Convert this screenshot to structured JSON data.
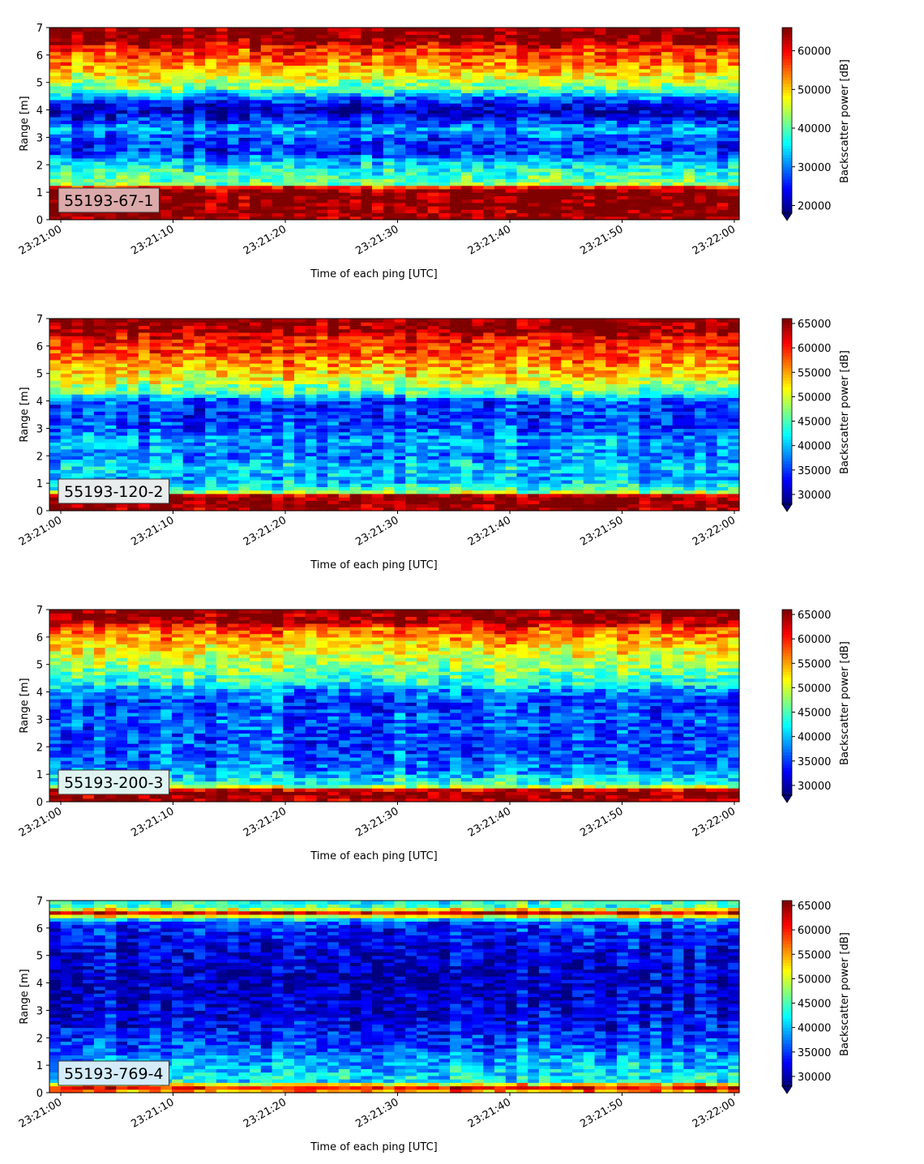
{
  "chart_data": [
    {
      "type": "heatmap",
      "label": "55193-67-1",
      "xlabel": "Time of each ping [UTC]",
      "ylabel": "Range [m]",
      "colorbar_label": "Backscatter power [dB]",
      "xticks": [
        "23:21:00",
        "23:21:10",
        "23:21:20",
        "23:21:30",
        "23:21:40",
        "23:21:50",
        "23:22:00"
      ],
      "yticks": [
        0,
        1,
        2,
        3,
        4,
        5,
        6,
        7
      ],
      "ylim": [
        0,
        7
      ],
      "colorbar_ticks": [
        20000,
        30000,
        40000,
        50000,
        60000
      ],
      "colorbar_range": [
        18000,
        66000
      ],
      "colormap": "jet",
      "label_box_color": "#dcaaaa",
      "profile": [
        [
          0.0,
          0.98
        ],
        [
          0.25,
          0.98
        ],
        [
          0.45,
          1.0
        ],
        [
          1.0,
          1.0
        ],
        [
          1.15,
          0.95
        ],
        [
          1.3,
          0.5
        ],
        [
          1.5,
          0.45
        ],
        [
          1.8,
          0.4
        ],
        [
          2.1,
          0.33
        ],
        [
          2.5,
          0.15
        ],
        [
          2.9,
          0.18
        ],
        [
          3.3,
          0.28
        ],
        [
          3.6,
          0.18
        ],
        [
          3.9,
          0.05
        ],
        [
          4.2,
          0.1
        ],
        [
          4.5,
          0.28
        ],
        [
          4.8,
          0.48
        ],
        [
          5.2,
          0.6
        ],
        [
          5.6,
          0.72
        ],
        [
          6.0,
          0.8
        ],
        [
          6.3,
          0.85
        ],
        [
          6.5,
          0.98
        ],
        [
          7.0,
          1.0
        ]
      ]
    },
    {
      "type": "heatmap",
      "label": "55193-120-2",
      "xlabel": "Time of each ping [UTC]",
      "ylabel": "Range [m]",
      "colorbar_label": "Backscatter power [dB]",
      "xticks": [
        "23:21:00",
        "23:21:10",
        "23:21:20",
        "23:21:30",
        "23:21:40",
        "23:21:50",
        "23:22:00"
      ],
      "yticks": [
        0,
        1,
        2,
        3,
        4,
        5,
        6,
        7
      ],
      "ylim": [
        0,
        7
      ],
      "colorbar_ticks": [
        30000,
        35000,
        40000,
        45000,
        50000,
        55000,
        60000,
        65000
      ],
      "colorbar_range": [
        28000,
        66000
      ],
      "colormap": "jet",
      "label_box_color": "#e8ecec",
      "profile": [
        [
          0.0,
          0.98
        ],
        [
          0.3,
          1.0
        ],
        [
          0.55,
          0.98
        ],
        [
          0.7,
          0.5
        ],
        [
          0.9,
          0.38
        ],
        [
          1.2,
          0.3
        ],
        [
          1.6,
          0.35
        ],
        [
          2.0,
          0.25
        ],
        [
          2.5,
          0.3
        ],
        [
          3.0,
          0.2
        ],
        [
          3.5,
          0.18
        ],
        [
          4.0,
          0.2
        ],
        [
          4.3,
          0.45
        ],
        [
          4.8,
          0.62
        ],
        [
          5.3,
          0.72
        ],
        [
          5.8,
          0.82
        ],
        [
          6.3,
          0.88
        ],
        [
          6.55,
          0.98
        ],
        [
          7.0,
          1.0
        ]
      ]
    },
    {
      "type": "heatmap",
      "label": "55193-200-3",
      "xlabel": "Time of each ping [UTC]",
      "ylabel": "Range [m]",
      "colorbar_label": "Backscatter power [dB]",
      "xticks": [
        "23:21:00",
        "23:21:10",
        "23:21:20",
        "23:21:30",
        "23:21:40",
        "23:21:50",
        "23:22:00"
      ],
      "yticks": [
        0,
        1,
        2,
        3,
        4,
        5,
        6,
        7
      ],
      "ylim": [
        0,
        7
      ],
      "colorbar_ticks": [
        30000,
        35000,
        40000,
        45000,
        50000,
        55000,
        60000,
        65000
      ],
      "colorbar_range": [
        28000,
        66000
      ],
      "colormap": "jet",
      "label_box_color": "#dff3f0",
      "profile": [
        [
          0.0,
          0.95
        ],
        [
          0.3,
          1.0
        ],
        [
          0.45,
          0.9
        ],
        [
          0.6,
          0.45
        ],
        [
          0.9,
          0.35
        ],
        [
          1.2,
          0.25
        ],
        [
          1.6,
          0.22
        ],
        [
          2.0,
          0.2
        ],
        [
          2.5,
          0.2
        ],
        [
          3.0,
          0.23
        ],
        [
          3.5,
          0.18
        ],
        [
          4.0,
          0.25
        ],
        [
          4.3,
          0.4
        ],
        [
          4.8,
          0.5
        ],
        [
          5.3,
          0.6
        ],
        [
          5.8,
          0.68
        ],
        [
          6.3,
          0.8
        ],
        [
          6.6,
          0.98
        ],
        [
          7.0,
          1.0
        ]
      ]
    },
    {
      "type": "heatmap",
      "label": "55193-769-4",
      "xlabel": "Time of each ping [UTC]",
      "ylabel": "Range [m]",
      "colorbar_label": "Backscatter power [dB]",
      "xticks": [
        "23:21:00",
        "23:21:10",
        "23:21:20",
        "23:21:30",
        "23:21:40",
        "23:21:50",
        "23:22:00"
      ],
      "yticks": [
        0,
        1,
        2,
        3,
        4,
        5,
        6,
        7
      ],
      "ylim": [
        0,
        7
      ],
      "colorbar_ticks": [
        30000,
        35000,
        40000,
        45000,
        50000,
        55000,
        60000,
        65000
      ],
      "colorbar_range": [
        28000,
        66000
      ],
      "colormap": "jet",
      "label_box_color": "#d4ecfa",
      "profile": [
        [
          0.0,
          0.6
        ],
        [
          0.15,
          0.95
        ],
        [
          0.3,
          0.7
        ],
        [
          0.4,
          0.4
        ],
        [
          0.8,
          0.35
        ],
        [
          1.2,
          0.3
        ],
        [
          1.6,
          0.22
        ],
        [
          2.0,
          0.18
        ],
        [
          3.0,
          0.1
        ],
        [
          4.0,
          0.07
        ],
        [
          5.0,
          0.1
        ],
        [
          5.8,
          0.15
        ],
        [
          6.2,
          0.2
        ],
        [
          6.4,
          0.5
        ],
        [
          6.55,
          0.95
        ],
        [
          6.7,
          0.6
        ],
        [
          6.85,
          0.4
        ],
        [
          7.0,
          0.45
        ]
      ]
    }
  ]
}
